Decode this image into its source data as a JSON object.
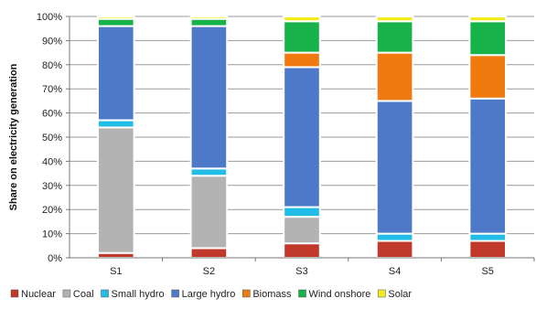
{
  "chart_data": {
    "type": "bar",
    "stacked": true,
    "percent_stacked": true,
    "categories": [
      "S1",
      "S2",
      "S3",
      "S4",
      "S5"
    ],
    "ylabel": "Share on electricity generation",
    "xlabel": "",
    "ylim": [
      0,
      100
    ],
    "yticks": [
      0,
      10,
      20,
      30,
      40,
      50,
      60,
      70,
      80,
      90,
      100
    ],
    "ytick_labels": [
      "0%",
      "10%",
      "20%",
      "30%",
      "40%",
      "50%",
      "60%",
      "70%",
      "80%",
      "90%",
      "100%"
    ],
    "grid": "horizontal",
    "legend_position": "bottom",
    "series": [
      {
        "name": "Nuclear",
        "color": "#c0392b",
        "values": [
          2,
          4,
          6,
          7,
          7
        ]
      },
      {
        "name": "Coal",
        "color": "#b3b3b3",
        "values": [
          52,
          30,
          11,
          0,
          0
        ]
      },
      {
        "name": "Small hydro",
        "color": "#22bde6",
        "values": [
          3,
          3,
          4,
          3,
          3
        ]
      },
      {
        "name": "Large hydro",
        "color": "#4e79c9",
        "values": [
          39,
          59,
          58,
          55,
          56
        ]
      },
      {
        "name": "Biomass",
        "color": "#f07a10",
        "values": [
          0,
          0,
          6,
          20,
          18
        ]
      },
      {
        "name": "Wind onshore",
        "color": "#17b24a",
        "values": [
          3,
          3,
          13,
          13,
          14
        ]
      },
      {
        "name": "Solar",
        "color": "#f2ea1a",
        "values": [
          1,
          1,
          2,
          2,
          2
        ]
      }
    ]
  }
}
